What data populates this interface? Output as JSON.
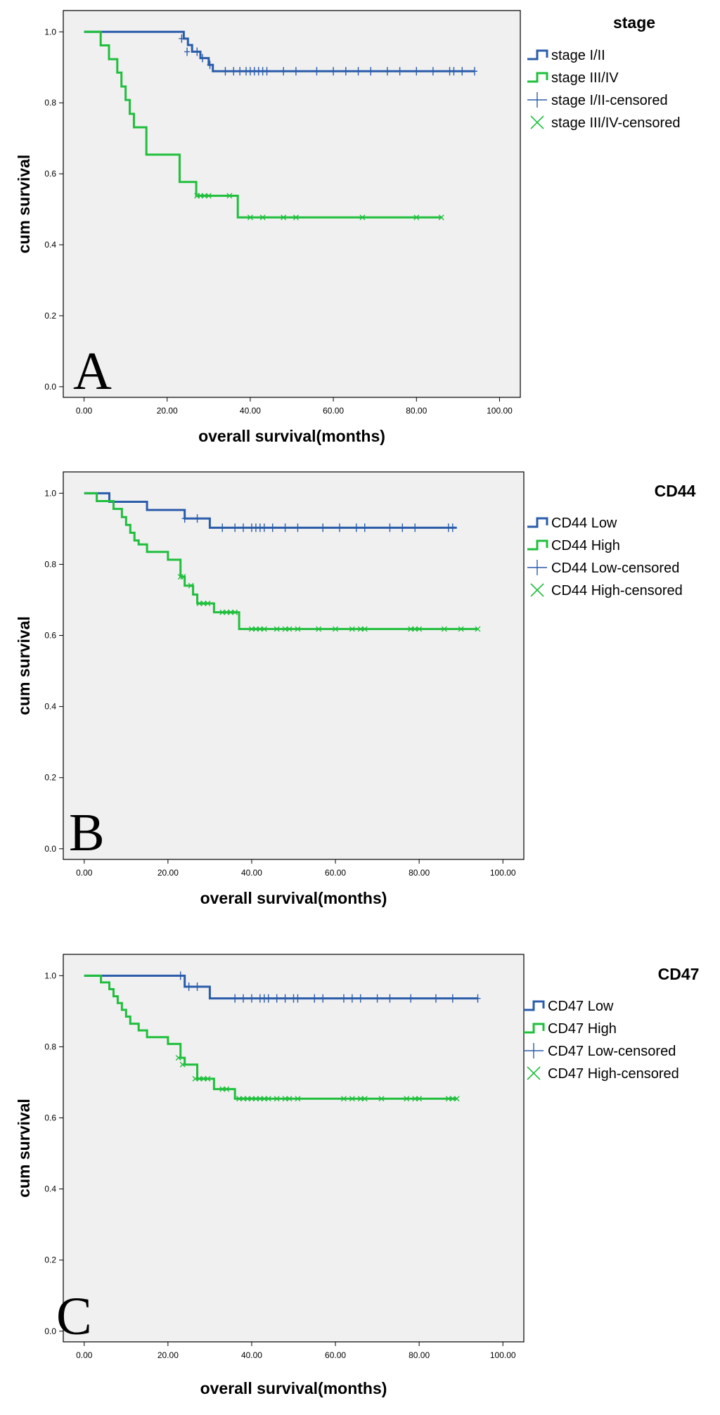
{
  "figure": {
    "panels": [
      "A",
      "B",
      "C"
    ]
  },
  "colors": {
    "low": "#2a5caa",
    "high": "#1fbf3c",
    "panel_bg": "#f0f0f0"
  },
  "chart_data": [
    {
      "type": "line",
      "subtype": "kaplan-meier",
      "panel_letter": "A",
      "legend_title": "stage",
      "xlabel": "overall survival(months)",
      "ylabel": "cum survival",
      "xlim": [
        -5,
        105
      ],
      "ylim": [
        -0.03,
        1.06
      ],
      "x_ticks": [
        0,
        20,
        40,
        60,
        80,
        100
      ],
      "x_tick_labels": [
        "0.00",
        "20.00",
        "40.00",
        "60.00",
        "80.00",
        "100.00"
      ],
      "y_ticks": [
        0,
        0.2,
        0.4,
        0.6,
        0.8,
        1.0
      ],
      "y_tick_labels": [
        "0.0",
        "0.2",
        "0.4",
        "0.6",
        "0.8",
        "1.0"
      ],
      "legend": [
        "stage I/II",
        "stage III/IV",
        "stage I/II-censored",
        "stage III/IV-censored"
      ],
      "series": [
        {
          "name": "stage I/II",
          "color": "#2a5caa",
          "censor_marker": "plus",
          "steps": [
            [
              0,
              1.0
            ],
            [
              24,
              0.981
            ],
            [
              25,
              0.963
            ],
            [
              26,
              0.944
            ],
            [
              28,
              0.926
            ],
            [
              30,
              0.907
            ],
            [
              31,
              0.889
            ]
          ],
          "end_x": 94,
          "censored": [
            [
              23.5,
              0.981
            ],
            [
              24.8,
              0.944
            ],
            [
              27.2,
              0.944
            ],
            [
              28.5,
              0.926
            ],
            [
              30.3,
              0.907
            ],
            [
              34,
              0.889
            ],
            [
              36,
              0.889
            ],
            [
              37.5,
              0.889
            ],
            [
              39,
              0.889
            ],
            [
              40,
              0.889
            ],
            [
              41,
              0.889
            ],
            [
              42,
              0.889
            ],
            [
              43,
              0.889
            ],
            [
              44,
              0.889
            ],
            [
              48,
              0.889
            ],
            [
              51,
              0.889
            ],
            [
              56,
              0.889
            ],
            [
              60,
              0.889
            ],
            [
              63,
              0.889
            ],
            [
              66,
              0.889
            ],
            [
              69,
              0.889
            ],
            [
              73,
              0.889
            ],
            [
              76,
              0.889
            ],
            [
              80,
              0.889
            ],
            [
              84,
              0.889
            ],
            [
              88,
              0.889
            ],
            [
              89,
              0.889
            ],
            [
              91,
              0.889
            ],
            [
              94,
              0.889
            ]
          ]
        },
        {
          "name": "stage III/IV",
          "color": "#1fbf3c",
          "censor_marker": "x",
          "steps": [
            [
              0,
              1.0
            ],
            [
              4,
              0.962
            ],
            [
              6,
              0.923
            ],
            [
              8,
              0.885
            ],
            [
              9,
              0.846
            ],
            [
              10,
              0.808
            ],
            [
              11,
              0.769
            ],
            [
              12,
              0.731
            ],
            [
              15,
              0.654
            ],
            [
              23,
              0.577
            ],
            [
              27,
              0.538
            ],
            [
              36,
              0.538
            ],
            [
              37,
              0.477
            ]
          ],
          "end_x": 86,
          "censored": [
            [
              27.2,
              0.538
            ],
            [
              28,
              0.538
            ],
            [
              29,
              0.538
            ],
            [
              30,
              0.538
            ],
            [
              35,
              0.538
            ],
            [
              40,
              0.477
            ],
            [
              43,
              0.477
            ],
            [
              48,
              0.477
            ],
            [
              51,
              0.477
            ],
            [
              67,
              0.477
            ],
            [
              80,
              0.477
            ],
            [
              86,
              0.477
            ]
          ]
        }
      ]
    },
    {
      "type": "line",
      "subtype": "kaplan-meier",
      "panel_letter": "B",
      "legend_title": "CD44",
      "xlabel": "overall survival(months)",
      "ylabel": "cum survival",
      "xlim": [
        -5,
        105
      ],
      "ylim": [
        -0.03,
        1.06
      ],
      "x_ticks": [
        0,
        20,
        40,
        60,
        80,
        100
      ],
      "x_tick_labels": [
        "0.00",
        "20.00",
        "40.00",
        "60.00",
        "80.00",
        "100.00"
      ],
      "y_ticks": [
        0,
        0.2,
        0.4,
        0.6,
        0.8,
        1.0
      ],
      "y_tick_labels": [
        "0.0",
        "0.2",
        "0.4",
        "0.6",
        "0.8",
        "1.0"
      ],
      "legend": [
        "CD44 Low",
        "CD44 High",
        "CD44 Low-censored",
        "CD44 High-censored"
      ],
      "series": [
        {
          "name": "CD44 Low",
          "color": "#2a5caa",
          "censor_marker": "plus",
          "steps": [
            [
              0,
              1.0
            ],
            [
              6,
              0.976
            ],
            [
              15,
              0.953
            ],
            [
              24,
              0.929
            ],
            [
              30,
              0.903
            ]
          ],
          "end_x": 89,
          "censored": [
            [
              24,
              0.929
            ],
            [
              27,
              0.929
            ],
            [
              33,
              0.903
            ],
            [
              36,
              0.903
            ],
            [
              38,
              0.903
            ],
            [
              40,
              0.903
            ],
            [
              41,
              0.903
            ],
            [
              42,
              0.903
            ],
            [
              43,
              0.903
            ],
            [
              45,
              0.903
            ],
            [
              48,
              0.903
            ],
            [
              51,
              0.903
            ],
            [
              57,
              0.903
            ],
            [
              61,
              0.903
            ],
            [
              65,
              0.903
            ],
            [
              67,
              0.903
            ],
            [
              73,
              0.903
            ],
            [
              76,
              0.903
            ],
            [
              79,
              0.903
            ],
            [
              87,
              0.903
            ],
            [
              88,
              0.903
            ]
          ]
        },
        {
          "name": "CD44 High",
          "color": "#1fbf3c",
          "censor_marker": "x",
          "steps": [
            [
              0,
              1.0
            ],
            [
              3,
              0.978
            ],
            [
              7,
              0.956
            ],
            [
              9,
              0.933
            ],
            [
              10,
              0.911
            ],
            [
              11,
              0.889
            ],
            [
              12,
              0.867
            ],
            [
              13,
              0.856
            ],
            [
              15,
              0.835
            ],
            [
              20,
              0.813
            ],
            [
              23,
              0.765
            ],
            [
              24,
              0.74
            ],
            [
              26,
              0.715
            ],
            [
              27,
              0.69
            ],
            [
              31,
              0.665
            ],
            [
              37,
              0.618
            ]
          ],
          "end_x": 94,
          "censored": [
            [
              23,
              0.765
            ],
            [
              23.6,
              0.765
            ],
            [
              25.5,
              0.74
            ],
            [
              27.5,
              0.69
            ],
            [
              28.5,
              0.69
            ],
            [
              29.5,
              0.69
            ],
            [
              33,
              0.665
            ],
            [
              34,
              0.665
            ],
            [
              35,
              0.665
            ],
            [
              36,
              0.665
            ],
            [
              40,
              0.618
            ],
            [
              41,
              0.618
            ],
            [
              42,
              0.618
            ],
            [
              43,
              0.618
            ],
            [
              46,
              0.618
            ],
            [
              48,
              0.618
            ],
            [
              49,
              0.618
            ],
            [
              51,
              0.618
            ],
            [
              56,
              0.618
            ],
            [
              60,
              0.618
            ],
            [
              64,
              0.618
            ],
            [
              66,
              0.618
            ],
            [
              67,
              0.618
            ],
            [
              78,
              0.618
            ],
            [
              79,
              0.618
            ],
            [
              80,
              0.618
            ],
            [
              86,
              0.618
            ],
            [
              90,
              0.618
            ],
            [
              94,
              0.618
            ]
          ]
        }
      ]
    },
    {
      "type": "line",
      "subtype": "kaplan-meier",
      "panel_letter": "C",
      "legend_title": "CD47",
      "xlabel": "overall survival(months)",
      "ylabel": "cum survival",
      "xlim": [
        -5,
        105
      ],
      "ylim": [
        -0.03,
        1.06
      ],
      "x_ticks": [
        0,
        20,
        40,
        60,
        80,
        100
      ],
      "x_tick_labels": [
        "0.00",
        "20.00",
        "40.00",
        "60.00",
        "80.00",
        "100.00"
      ],
      "y_ticks": [
        0,
        0.2,
        0.4,
        0.6,
        0.8,
        1.0
      ],
      "y_tick_labels": [
        "0.0",
        "0.2",
        "0.4",
        "0.6",
        "0.8",
        "1.0"
      ],
      "legend": [
        "CD47 Low",
        "CD47 High",
        "CD47 Low-censored",
        "CD47 High-censored"
      ],
      "series": [
        {
          "name": "CD47 Low",
          "color": "#2a5caa",
          "censor_marker": "plus",
          "steps": [
            [
              0,
              1.0
            ],
            [
              24,
              0.969
            ],
            [
              30,
              0.936
            ]
          ],
          "end_x": 94,
          "censored": [
            [
              23,
              1.0
            ],
            [
              25,
              0.969
            ],
            [
              27,
              0.969
            ],
            [
              36,
              0.936
            ],
            [
              38,
              0.936
            ],
            [
              40,
              0.936
            ],
            [
              42,
              0.936
            ],
            [
              43,
              0.936
            ],
            [
              44,
              0.936
            ],
            [
              46,
              0.936
            ],
            [
              48,
              0.936
            ],
            [
              50,
              0.936
            ],
            [
              51,
              0.936
            ],
            [
              55,
              0.936
            ],
            [
              57,
              0.936
            ],
            [
              62,
              0.936
            ],
            [
              64,
              0.936
            ],
            [
              66,
              0.936
            ],
            [
              70,
              0.936
            ],
            [
              73,
              0.936
            ],
            [
              78,
              0.936
            ],
            [
              84,
              0.936
            ],
            [
              88,
              0.936
            ],
            [
              94,
              0.936
            ]
          ]
        },
        {
          "name": "CD47 High",
          "color": "#1fbf3c",
          "censor_marker": "x",
          "steps": [
            [
              0,
              1.0
            ],
            [
              4,
              0.981
            ],
            [
              6,
              0.962
            ],
            [
              7,
              0.942
            ],
            [
              8,
              0.923
            ],
            [
              9,
              0.904
            ],
            [
              10,
              0.885
            ],
            [
              11,
              0.865
            ],
            [
              13,
              0.846
            ],
            [
              15,
              0.827
            ],
            [
              20,
              0.808
            ],
            [
              23,
              0.769
            ],
            [
              24,
              0.75
            ],
            [
              27,
              0.71
            ],
            [
              31,
              0.681
            ],
            [
              36,
              0.654
            ]
          ],
          "end_x": 89,
          "censored": [
            [
              22.5,
              0.769
            ],
            [
              23.5,
              0.75
            ],
            [
              26.5,
              0.71
            ],
            [
              27.5,
              0.71
            ],
            [
              28.5,
              0.71
            ],
            [
              29.5,
              0.71
            ],
            [
              33,
              0.681
            ],
            [
              34,
              0.681
            ],
            [
              37,
              0.654
            ],
            [
              38,
              0.654
            ],
            [
              39,
              0.654
            ],
            [
              40,
              0.654
            ],
            [
              41,
              0.654
            ],
            [
              42,
              0.654
            ],
            [
              43,
              0.654
            ],
            [
              44,
              0.654
            ],
            [
              46,
              0.654
            ],
            [
              48,
              0.654
            ],
            [
              49,
              0.654
            ],
            [
              51,
              0.654
            ],
            [
              62,
              0.654
            ],
            [
              64,
              0.654
            ],
            [
              66,
              0.654
            ],
            [
              67,
              0.654
            ],
            [
              71,
              0.654
            ],
            [
              77,
              0.654
            ],
            [
              79,
              0.654
            ],
            [
              80,
              0.654
            ],
            [
              87,
              0.654
            ],
            [
              88,
              0.654
            ],
            [
              89,
              0.654
            ]
          ]
        }
      ]
    }
  ]
}
